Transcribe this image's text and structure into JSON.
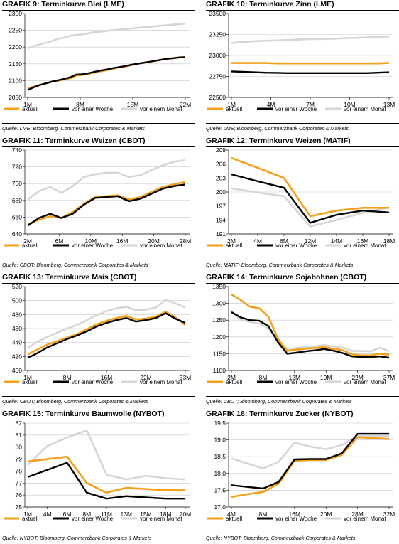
{
  "legend_labels": [
    "aktuell",
    "vor einer Woche",
    "vor einem Monat"
  ],
  "colors": {
    "aktuell": "#f5a01a",
    "woche": "#000000",
    "monat": "#d6d6d6"
  },
  "chart_data": [
    {
      "id": "g9",
      "type": "line",
      "title_prefix": "GRAFIK 9",
      "title_rest": ": Terminkurve Blei (LME)",
      "source": "Quelle: LME; Bloomberg, Commerzbank Corporates & Markets",
      "ylim": [
        2050,
        2300
      ],
      "yticks": [
        "2050",
        "2100",
        "2150",
        "2200",
        "2250",
        "2300"
      ],
      "xticks": [
        "1M",
        "8M",
        "15M",
        "22M"
      ],
      "x": [
        1,
        2,
        3,
        4,
        5,
        6,
        7,
        8,
        9,
        10,
        11,
        12,
        13,
        14,
        15,
        16,
        17,
        18,
        19,
        20,
        21,
        22,
        23,
        24,
        25,
        26,
        27
      ],
      "series": [
        {
          "name": "aktuell",
          "values": [
            2076,
            2082,
            2087,
            2092,
            2097,
            2100,
            2103,
            2107,
            2115,
            2117,
            2120,
            2124,
            2128,
            2131,
            2135,
            2139,
            2142,
            2146,
            2150,
            2153,
            2156,
            2159,
            2162,
            2165,
            2167,
            2169,
            2170
          ]
        },
        {
          "name": "vor einer Woche",
          "values": [
            2072,
            2080,
            2087,
            2092,
            2097,
            2101,
            2105,
            2110,
            2118,
            2119,
            2122,
            2126,
            2130,
            2133,
            2137,
            2140,
            2143,
            2147,
            2150,
            2153,
            2156,
            2159,
            2162,
            2165,
            2167,
            2169,
            2170
          ]
        },
        {
          "name": "vor einem Monat",
          "values": [
            2196,
            2203,
            2208,
            2213,
            2218,
            2225,
            2228,
            2234,
            2236,
            2238,
            2241,
            2244,
            2246,
            2248,
            2250,
            2252,
            2254,
            2255,
            2257,
            2259,
            2260,
            2262,
            2264,
            2265,
            2267,
            2268,
            2270
          ]
        }
      ]
    },
    {
      "id": "g10",
      "type": "line",
      "title_prefix": "GRAFIK 10",
      "title_rest": ": Terminkurve Zinn (LME)",
      "source": "Quelle: LME; Bloomberg, Commerzbank Corporates & Markets",
      "ylim": [
        22500,
        23500
      ],
      "yticks": [
        "22500",
        "22750",
        "23000",
        "23250",
        "23500"
      ],
      "xticks": [
        "1M",
        "4M",
        "7M",
        "10M",
        "13M"
      ],
      "x": [
        1,
        2,
        3,
        4,
        5,
        6,
        7,
        8,
        9,
        10,
        11,
        12,
        13,
        14,
        15
      ],
      "series": [
        {
          "name": "aktuell",
          "values": [
            22910,
            22910,
            22910,
            22910,
            22905,
            22905,
            22905,
            22905,
            22905,
            22905,
            22905,
            22905,
            22905,
            22905,
            22910
          ]
        },
        {
          "name": "vor einer Woche",
          "values": [
            22810,
            22805,
            22800,
            22795,
            22793,
            22790,
            22790,
            22790,
            22790,
            22790,
            22790,
            22790,
            22790,
            22795,
            22800
          ]
        },
        {
          "name": "vor einem Monat",
          "values": [
            23150,
            23160,
            23170,
            23175,
            23180,
            23185,
            23190,
            23195,
            23197,
            23200,
            23205,
            23210,
            23215,
            23220,
            23225
          ]
        }
      ]
    },
    {
      "id": "g11",
      "type": "line",
      "title_prefix": "GRAFIK 11",
      "title_rest": ": Terminkurve Weizen (CBOT)",
      "source": "Quelle: CBOT; Bloomberg, Commerzbank Corporates & Markets",
      "ylim": [
        640,
        740
      ],
      "yticks": [
        "640",
        "660",
        "680",
        "700",
        "720",
        "740"
      ],
      "xticks": [
        "2M",
        "6M",
        "10M",
        "16M",
        "20M",
        "28M"
      ],
      "x": [
        1,
        3,
        5,
        7,
        9,
        11,
        13,
        15,
        17,
        19,
        21,
        23,
        25,
        27,
        29
      ],
      "series": [
        {
          "name": "aktuell",
          "values": [
            651,
            657,
            661,
            659,
            666,
            676,
            684,
            685,
            686,
            681,
            684,
            690,
            696,
            699,
            702
          ]
        },
        {
          "name": "vor einer Woche",
          "values": [
            650,
            659,
            664,
            659,
            664,
            675,
            683,
            684,
            685,
            679,
            682,
            688,
            694,
            697,
            699
          ]
        },
        {
          "name": "vor einem Monat",
          "values": [
            681,
            691,
            696,
            689,
            697,
            708,
            711,
            713,
            713,
            708,
            710,
            716,
            722,
            726,
            728
          ]
        }
      ]
    },
    {
      "id": "g12",
      "type": "line",
      "title_prefix": "GRAFIK 12",
      "title_rest": ": Terminkurve Weizen (MATIF)",
      "source": "Quelle: MATIF; Bloomberg, Commerzbank Corporates & Markets",
      "ylim": [
        191,
        209
      ],
      "yticks": [
        "191",
        "194",
        "197",
        "200",
        "203",
        "206",
        "209"
      ],
      "xticks": [
        "2M",
        "4M",
        "6M",
        "12M",
        "14M",
        "16M",
        "18M"
      ],
      "x": [
        1,
        2,
        3,
        4,
        5,
        6,
        7
      ],
      "series": [
        {
          "name": "aktuell",
          "values": [
            207.3,
            205.2,
            203.0,
            194.8,
            196.0,
            196.6,
            196.6
          ]
        },
        {
          "name": "vor einer Woche",
          "values": [
            203.8,
            202.3,
            200.9,
            193.4,
            195.1,
            196.0,
            195.6
          ]
        },
        {
          "name": "vor einem Monat",
          "values": [
            200.8,
            199.9,
            199.1,
            192.6,
            194.0,
            195.5,
            196.7
          ]
        }
      ]
    },
    {
      "id": "g13",
      "type": "line",
      "title_prefix": "GRAFIK 13",
      "title_rest": ":  Terminkurve Mais (CBOT)",
      "source": "Quelle: CBOT; Bloomberg, Commerzbank Corporates & Markets",
      "ylim": [
        400,
        520
      ],
      "yticks": [
        "400",
        "420",
        "440",
        "460",
        "480",
        "500",
        "520"
      ],
      "xticks": [
        "1M",
        "8M",
        "16M",
        "22M",
        "33M"
      ],
      "x": [
        1,
        3,
        5,
        7,
        9,
        11,
        13,
        15,
        17,
        19,
        21,
        23,
        25,
        27,
        29,
        31,
        33
      ],
      "series": [
        {
          "name": "aktuell",
          "values": [
            423,
            430,
            437,
            442,
            447,
            452,
            459,
            466,
            471,
            475,
            478,
            473,
            474,
            477,
            484,
            476,
            465
          ]
        },
        {
          "name": "vor einer Woche",
          "values": [
            418,
            425,
            433,
            439,
            445,
            450,
            456,
            463,
            468,
            472,
            475,
            470,
            472,
            475,
            482,
            474,
            468
          ]
        },
        {
          "name": "vor einem Monat",
          "values": [
            432,
            441,
            448,
            454,
            460,
            465,
            472,
            479,
            485,
            489,
            491,
            486,
            487,
            490,
            501,
            496,
            490
          ]
        }
      ]
    },
    {
      "id": "g14",
      "type": "line",
      "title_prefix": "GRAFIK 14",
      "title_rest": ": Terminkurve Sojabohnen (CBOT)",
      "source": "Quelle: CBOT; Bloomberg, Commerzbank Corporates & Markets",
      "ylim": [
        1100,
        1350
      ],
      "yticks": [
        "1100",
        "1150",
        "1200",
        "1250",
        "1300",
        "1350"
      ],
      "xticks": [
        "2M",
        "8M",
        "12M",
        "19M",
        "22M",
        "37M"
      ],
      "x": [
        1,
        2,
        3,
        4,
        5,
        6,
        7,
        8,
        9,
        10,
        11,
        12,
        13,
        14,
        15,
        16,
        17,
        18
      ],
      "series": [
        {
          "name": "aktuell",
          "values": [
            1327,
            1310,
            1290,
            1285,
            1260,
            1195,
            1158,
            1162,
            1165,
            1167,
            1170,
            1165,
            1160,
            1148,
            1145,
            1145,
            1150,
            1147
          ]
        },
        {
          "name": "vor einer Woche",
          "values": [
            1274,
            1258,
            1250,
            1248,
            1232,
            1185,
            1150,
            1153,
            1157,
            1160,
            1164,
            1159,
            1152,
            1142,
            1140,
            1140,
            1142,
            1138
          ]
        },
        {
          "name": "vor einem Monat",
          "values": [
            1275,
            1250,
            1245,
            1240,
            1225,
            1190,
            1163,
            1167,
            1170,
            1172,
            1176,
            1172,
            1168,
            1158,
            1158,
            1157,
            1168,
            1157
          ]
        }
      ]
    },
    {
      "id": "g15",
      "type": "line",
      "title_prefix": "GRAFIK 15",
      "title_rest": ": Terminkurve Baumwolle (NYBOT)",
      "source": "Quelle: NYBOT; Bloomberg, Commerzbank Corporates & Markets",
      "ylim": [
        75,
        82
      ],
      "yticks": [
        "75",
        "76",
        "77",
        "78",
        "79",
        "80",
        "81",
        "82"
      ],
      "xticks": [
        "1M",
        "4M",
        "6M",
        "8M",
        "11M",
        "13M",
        "15M",
        "18M",
        "20M"
      ],
      "x": [
        1,
        2,
        3,
        4,
        5,
        6,
        7,
        8,
        9
      ],
      "series": [
        {
          "name": "aktuell",
          "values": [
            78.8,
            79.0,
            79.2,
            77.0,
            76.2,
            76.6,
            76.5,
            76.4,
            76.4
          ]
        },
        {
          "name": "vor einer Woche",
          "values": [
            77.5,
            78.1,
            78.7,
            76.2,
            75.7,
            75.9,
            75.8,
            75.7,
            75.7
          ]
        },
        {
          "name": "vor einem Monat",
          "values": [
            78.5,
            80.1,
            80.8,
            81.4,
            77.7,
            77.3,
            77.6,
            77.4,
            77.3
          ]
        }
      ]
    },
    {
      "id": "g16",
      "type": "line",
      "title_prefix": "GRAFIK 16",
      "title_rest": ": Terminkurve Zucker (NYBOT)",
      "source": "Quelle: NYBOT; Bloomberg, Commerzbank Corporates & Markets",
      "ylim": [
        17.0,
        19.5
      ],
      "yticks": [
        "17.0",
        "17.5",
        "18.0",
        "18.5",
        "19.0",
        "19.5"
      ],
      "xticks": [
        "4M",
        "8M",
        "16M",
        "20M",
        "28M",
        "32M"
      ],
      "x": [
        1,
        2,
        3,
        4,
        5,
        6,
        7,
        8,
        9,
        10,
        11
      ],
      "series": [
        {
          "name": "aktuell",
          "values": [
            17.3,
            17.38,
            17.45,
            17.7,
            18.38,
            18.4,
            18.4,
            18.55,
            19.08,
            19.05,
            19.03
          ]
        },
        {
          "name": "vor einer Woche",
          "values": [
            17.65,
            17.6,
            17.55,
            17.75,
            18.42,
            18.43,
            18.43,
            18.6,
            19.18,
            19.18,
            19.18
          ]
        },
        {
          "name": "vor einem Monat",
          "values": [
            18.45,
            18.3,
            18.15,
            18.35,
            18.92,
            18.8,
            18.72,
            18.85,
            19.12,
            19.12,
            19.12
          ]
        }
      ]
    }
  ]
}
